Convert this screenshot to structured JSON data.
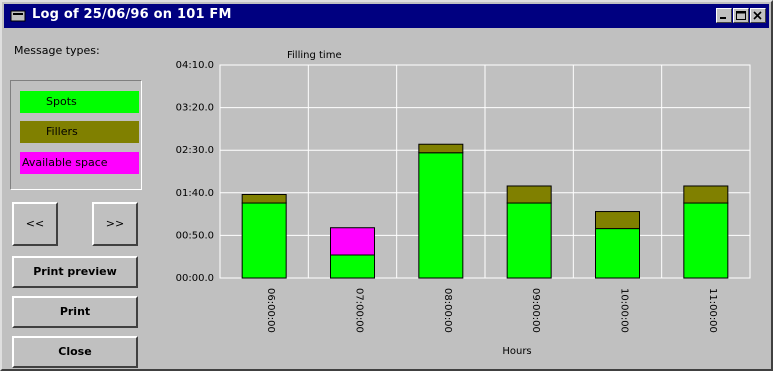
{
  "window": {
    "title": "Log of 25/06/96 on 101 FM",
    "buttons": [
      "minimize",
      "maximize",
      "close"
    ]
  },
  "left_panel": {
    "label": "Message types:",
    "legend": [
      {
        "label": "Spots",
        "color": "#00ff00"
      },
      {
        "label": "Fillers",
        "color": "#808000"
      },
      {
        "label": "Available space",
        "color": "#ff00ff"
      }
    ],
    "prev_label": "<<",
    "next_label": ">>",
    "print_preview_label": "Print preview",
    "print_label": "Print",
    "close_label": "Close"
  },
  "chart_data": {
    "type": "bar",
    "stacked": true,
    "title": "Filling time",
    "xlabel": "Hours",
    "ylabel": "",
    "categories": [
      "06:00:00",
      "07:00:00",
      "08:00:00",
      "09:00:00",
      "10:00:00",
      "11:00:00"
    ],
    "y_ticks": [
      "00:00.0",
      "00:50.0",
      "01:40.0",
      "02:30.0",
      "03:20.0",
      "04:10.0"
    ],
    "ylim": [
      0,
      250
    ],
    "grid": true,
    "series": [
      {
        "name": "Spots",
        "color": "#00ff00",
        "values": [
          88,
          27,
          147,
          88,
          58,
          88
        ]
      },
      {
        "name": "Fillers",
        "color": "#808000",
        "values": [
          10,
          0,
          10,
          20,
          20,
          20
        ]
      },
      {
        "name": "Available space",
        "color": "#ff00ff",
        "values": [
          0,
          32,
          0,
          0,
          0,
          0
        ]
      }
    ]
  }
}
